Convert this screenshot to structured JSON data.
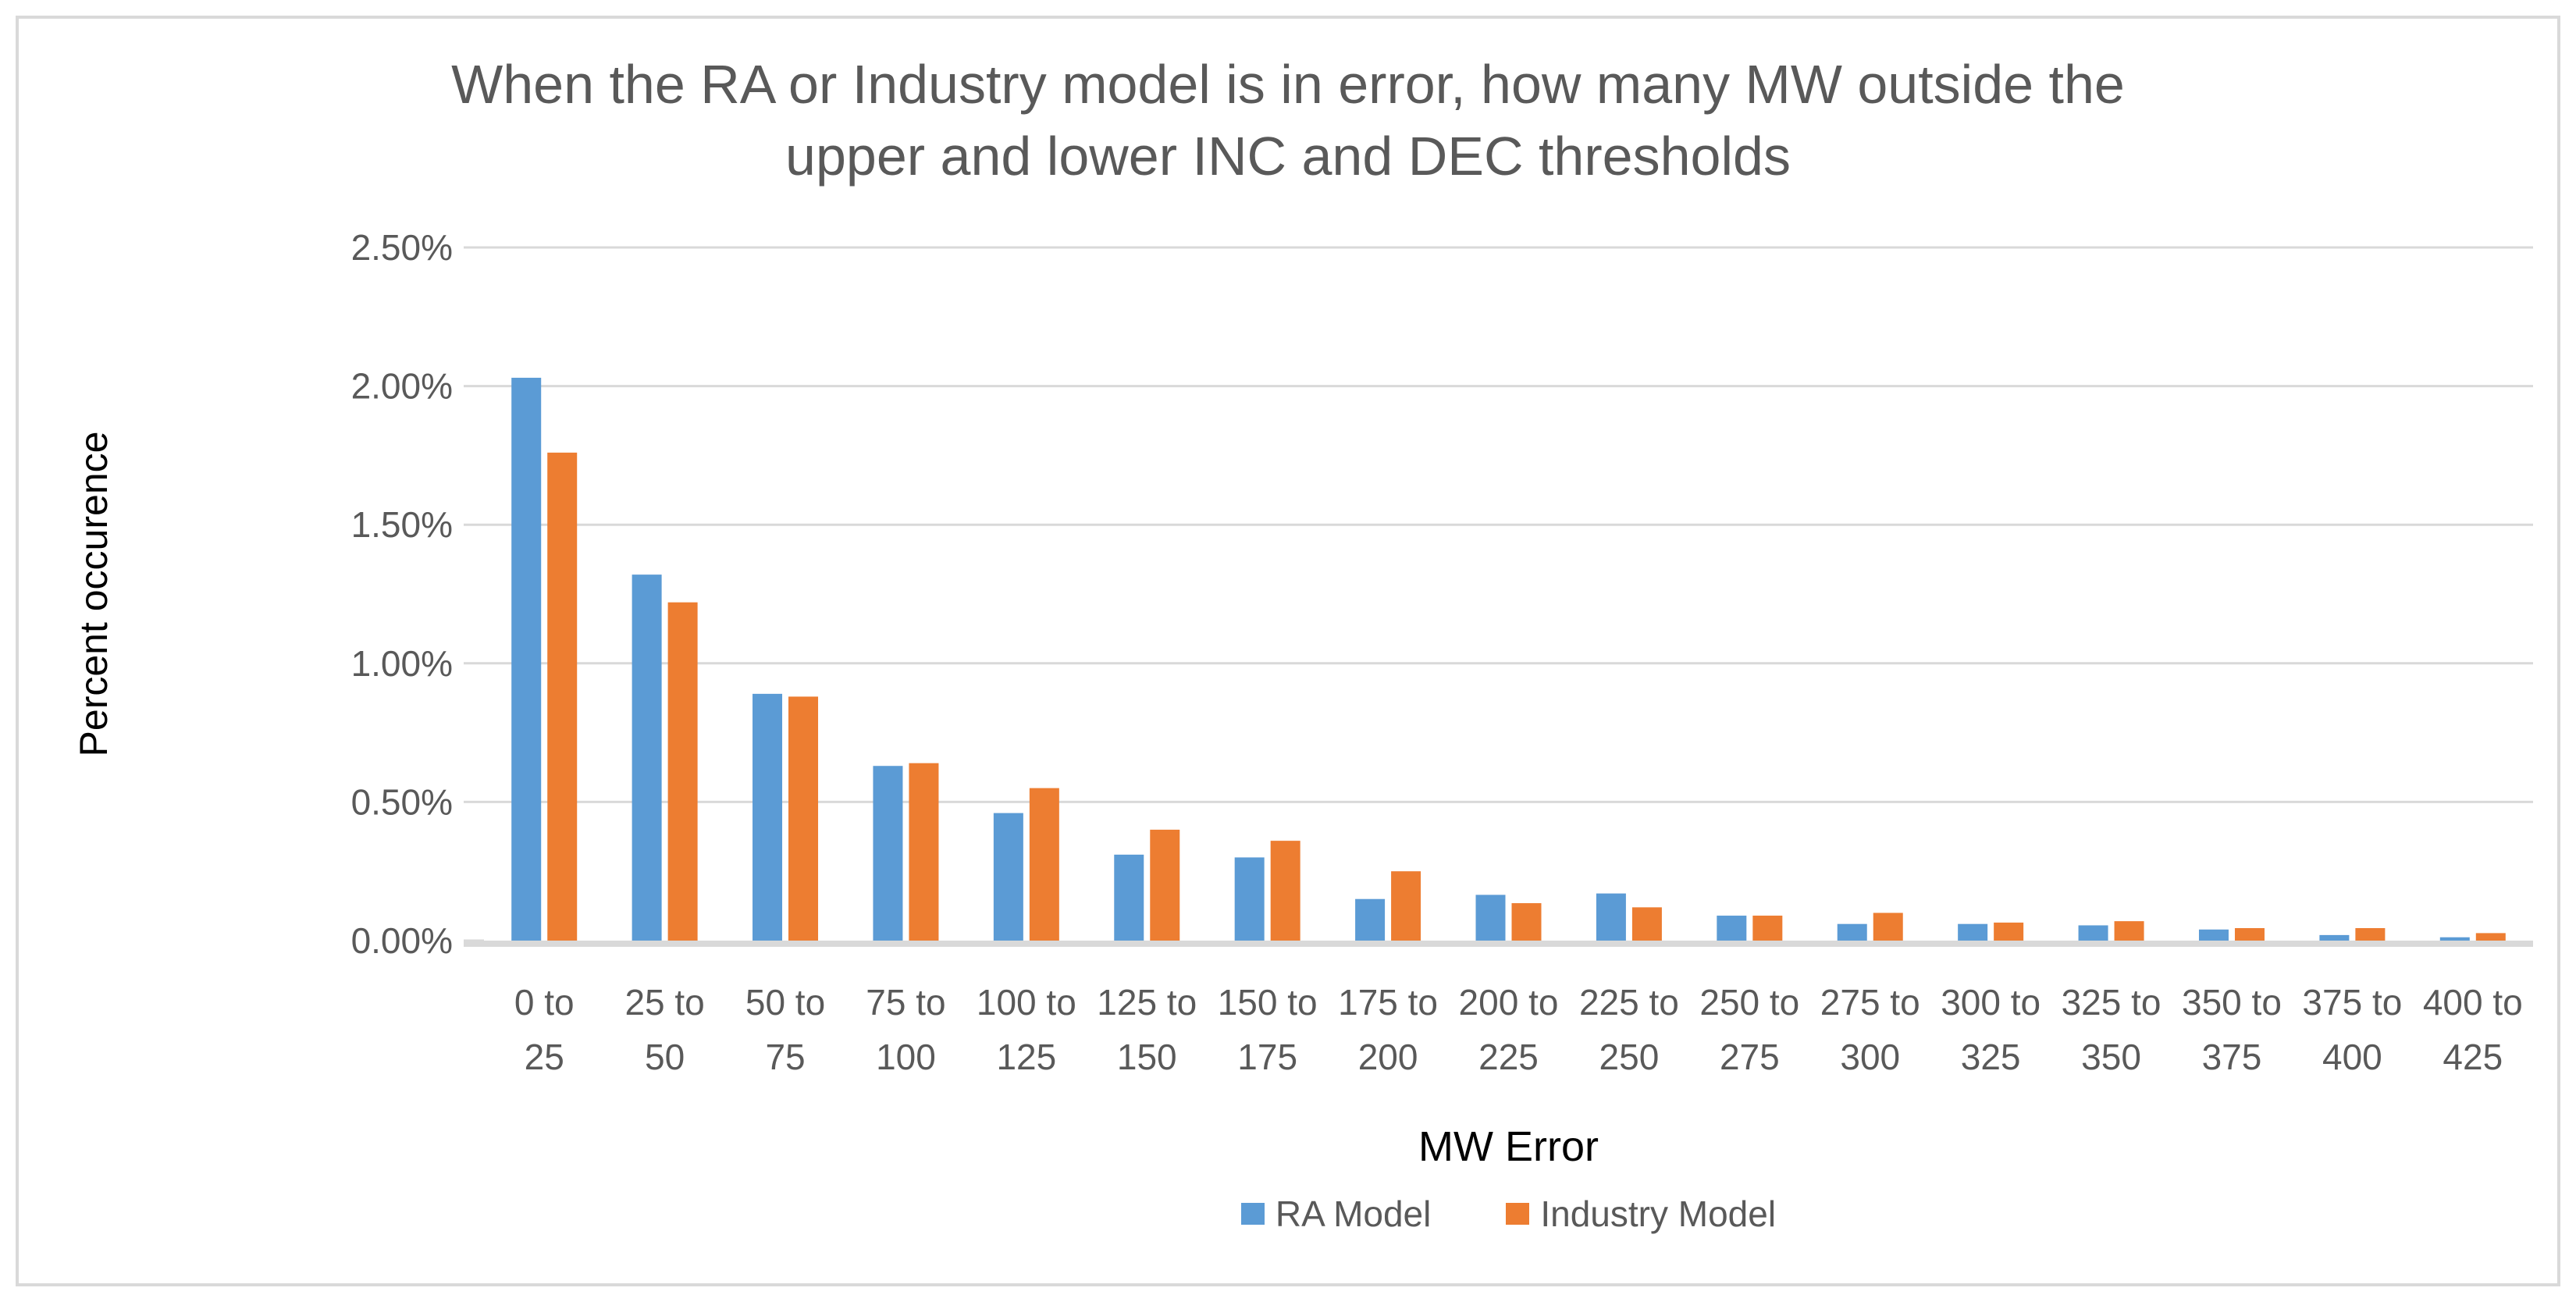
{
  "chart_data": {
    "type": "bar",
    "title": "When the RA or Industry model is in error,  how many MW outside the upper and lower INC and DEC thresholds",
    "title_lines": [
      "When the RA or Industry model is in error,  how many MW outside the",
      "upper and lower INC and DEC thresholds"
    ],
    "xlabel": "MW Error",
    "ylabel": "Percent occurence",
    "categories": [
      "0 to 25",
      "25 to 50",
      "50 to 75",
      "75 to 100",
      "100 to 125",
      "125 to 150",
      "150 to 175",
      "175 to 200",
      "200 to 225",
      "225 to 250",
      "250 to 275",
      "275 to 300",
      "300 to 325",
      "325 to 350",
      "350 to 375",
      "375 to 400",
      "400 to 425"
    ],
    "series": [
      {
        "name": "RA Model",
        "color": "#5B9BD5",
        "values": [
          2.03,
          1.32,
          0.89,
          0.63,
          0.46,
          0.31,
          0.3,
          0.15,
          0.165,
          0.17,
          0.09,
          0.06,
          0.06,
          0.055,
          0.04,
          0.02,
          0.012
        ]
      },
      {
        "name": "Industry Model",
        "color": "#ED7D31",
        "values": [
          1.76,
          1.22,
          0.88,
          0.64,
          0.55,
          0.4,
          0.36,
          0.25,
          0.135,
          0.12,
          0.09,
          0.1,
          0.065,
          0.07,
          0.045,
          0.045,
          0.027
        ]
      }
    ],
    "values_unit": "percent",
    "y_axis": {
      "min": 0,
      "max": 2.5,
      "step": 0.5,
      "tick_labels": [
        "0.00%",
        "0.50%",
        "1.00%",
        "1.50%",
        "2.00%",
        "2.50%"
      ]
    },
    "grid": true,
    "legend_position": "bottom",
    "colors": {
      "gridline": "#D9D9D9",
      "axis_line": "#D9D9D9",
      "border": "#D9D9D9",
      "tick_text": "#595959",
      "title_text": "#595959",
      "axis_title_text": "#000000",
      "background": "#FFFFFF"
    }
  }
}
